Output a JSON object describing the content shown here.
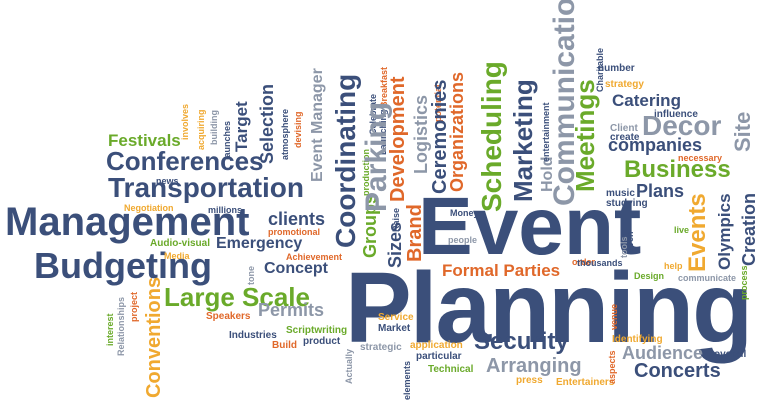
{
  "cloud": {
    "planning": "Planning",
    "event": "Event",
    "management": "Management",
    "budgeting": "Budgeting",
    "transportation": "Transportation",
    "conferences": "Conferences",
    "large_scale": "Large Scale",
    "festivals": "Festivals",
    "business": "Business",
    "decor": "Decor",
    "security": "Security",
    "arranging": "Arranging",
    "concerts": "Concerts",
    "audience": "Audience",
    "formal_parties": "Formal Parties",
    "catering": "Catering",
    "companies": "companies",
    "plans": "Plans",
    "meetings": "Meetings",
    "scheduling": "Scheduling",
    "marketing": "Marketing",
    "communication": "Communication",
    "coordinating": "Coordinating",
    "parking": "Parking",
    "development": "Development",
    "logistics": "Logistics",
    "ceremonies": "Ceremonies",
    "organizations": "Organizations",
    "groups": "Groups",
    "sizes": "Sizes",
    "brand": "Brand",
    "events": "Events",
    "olympics": "Olympics",
    "creation": "Creation",
    "site": "Site",
    "conventions": "Conventions",
    "emergency": "Emergency",
    "concept": "Concept",
    "permits": "Permits",
    "clients": "clients",
    "event_manager": "Event Manager",
    "target": "Target",
    "selection": "Selection",
    "hold": "Hold",
    "news": "news",
    "negotiation": "Negotiation",
    "millions": "millions",
    "promotional": "promotional",
    "audio_visual": "Audio-visual",
    "media": "Media",
    "achievement": "Achievement",
    "speakers": "Speakers",
    "industries": "Industries",
    "scriptwriting": "Scriptwriting",
    "build": "Build",
    "product": "product",
    "service": "Service",
    "market": "Market",
    "strategic": "strategic",
    "application": "application",
    "particular": "particular",
    "technical": "Technical",
    "press": "press",
    "entertainers": "Entertainers",
    "identifying": "Identifying",
    "overall": "overall",
    "communicate": "communicate",
    "design": "Design",
    "help": "help",
    "thousands": "thousands",
    "order": "order",
    "people": "people",
    "money": "Money",
    "raise": "Raise",
    "music": "music",
    "studying": "studying",
    "live": "live",
    "even": "even",
    "tools": "tools",
    "necessary": "necessary",
    "influence": "influence",
    "create": "create",
    "client": "Client",
    "strategy": "strategy",
    "number": "number",
    "charitable": "Charitable",
    "entertainment": "entertainment",
    "potential": "potential",
    "celebrate": "Celebrate",
    "launching": "Launching",
    "breakfast": "Breakfast",
    "production": "production",
    "devising": "devising",
    "atmosphere": "atmosphere",
    "launches": "launches",
    "building": "building",
    "acquiring": "acquiring",
    "involves": "involves",
    "interest": "interest",
    "relationships": "Relationships",
    "project": "project",
    "tone": "tone",
    "actually": "Actually",
    "elements": "elements",
    "aspects": "aspects",
    "process": "process",
    "venue": "venue"
  },
  "colors": {
    "navy": "#3b4f7a",
    "green": "#6aaa2a",
    "orange": "#e0682a",
    "gray": "#8d97a8",
    "gold": "#f0a930"
  }
}
